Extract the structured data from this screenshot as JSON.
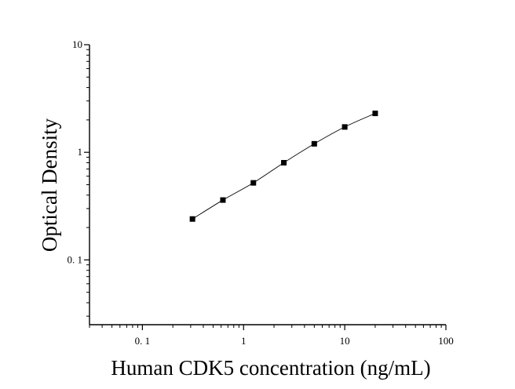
{
  "chart_data": {
    "type": "scatter",
    "title": "",
    "xlabel": "Human CDK5 concentration (ng/mL)",
    "ylabel": "Optical Density",
    "xscale": "log",
    "yscale": "log",
    "xlim": [
      0.03,
      100
    ],
    "ylim": [
      0.025,
      10
    ],
    "x_ticks": [
      0.1,
      1,
      10,
      100
    ],
    "x_tick_labels": [
      "0. 1",
      "1",
      "10",
      "100"
    ],
    "y_ticks": [
      0.1,
      1,
      10
    ],
    "y_tick_labels": [
      "0. 1",
      "1",
      "10"
    ],
    "grid": false,
    "legend": "none",
    "fit_curve": true,
    "series": [
      {
        "x": [
          0.3125,
          0.625,
          1.25,
          2.5,
          5,
          10,
          20
        ],
        "y": [
          0.24,
          0.36,
          0.52,
          0.8,
          1.2,
          1.72,
          2.3
        ]
      }
    ]
  }
}
